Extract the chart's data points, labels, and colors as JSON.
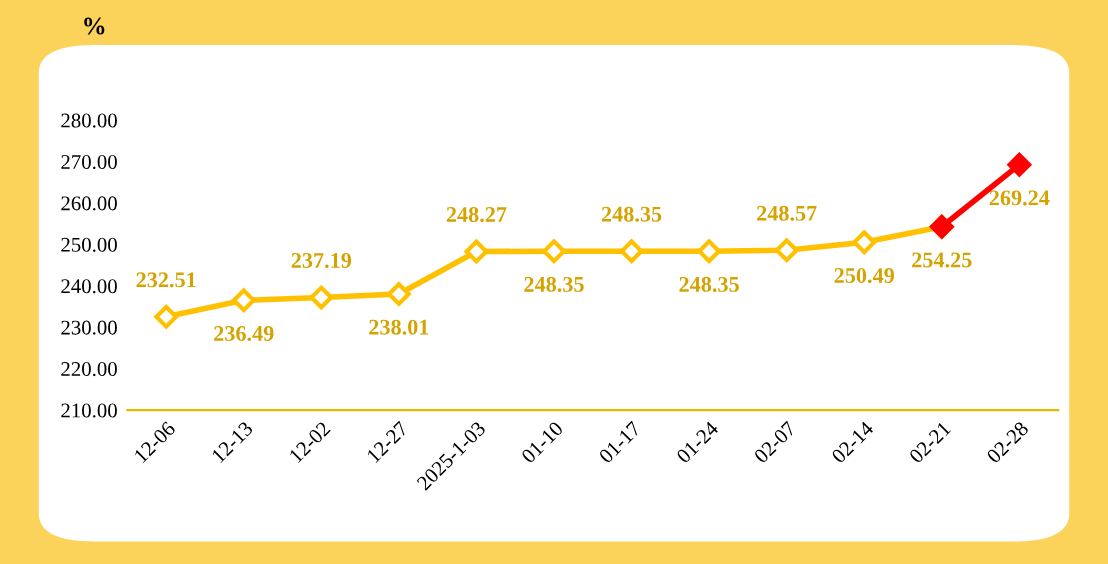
{
  "chart_data": {
    "type": "line",
    "ylabel": "%",
    "categories": [
      "12-06",
      "12-13",
      "12-02",
      "12-27",
      "2025-1-03",
      "01-10",
      "01-17",
      "01-24",
      "02-07",
      "02-14",
      "02-21",
      "02-28"
    ],
    "series": [
      {
        "color": "#ffc000",
        "values": [
          232.51,
          236.49,
          237.19,
          238.01,
          248.27,
          248.35,
          248.35,
          248.35,
          248.57,
          250.49,
          254.25,
          null
        ],
        "value_labels": [
          "232.51",
          "236.49",
          "237.19",
          "238.01",
          "248.27",
          "248.35",
          "248.35",
          "248.35",
          "248.57",
          "250.49",
          "254.25",
          null
        ]
      },
      {
        "color": "#ff0000",
        "values": [
          null,
          null,
          null,
          null,
          null,
          null,
          null,
          null,
          null,
          null,
          254.25,
          269.24
        ],
        "value_labels": [
          null,
          null,
          null,
          null,
          null,
          null,
          null,
          null,
          null,
          null,
          null,
          "269.24"
        ]
      }
    ],
    "ylim": [
      210,
      280
    ],
    "yticks": [
      {
        "value": 210,
        "label": "210.00"
      },
      {
        "value": 220,
        "label": "220.00"
      },
      {
        "value": 230,
        "label": "230.00"
      },
      {
        "value": 240,
        "label": "240.00"
      },
      {
        "value": 250,
        "label": "250.00"
      },
      {
        "value": 260,
        "label": "260.00"
      },
      {
        "value": 270,
        "label": "270.00"
      },
      {
        "value": 280,
        "label": "280.00"
      }
    ],
    "marker": "diamond",
    "grid": false,
    "legend": false
  }
}
